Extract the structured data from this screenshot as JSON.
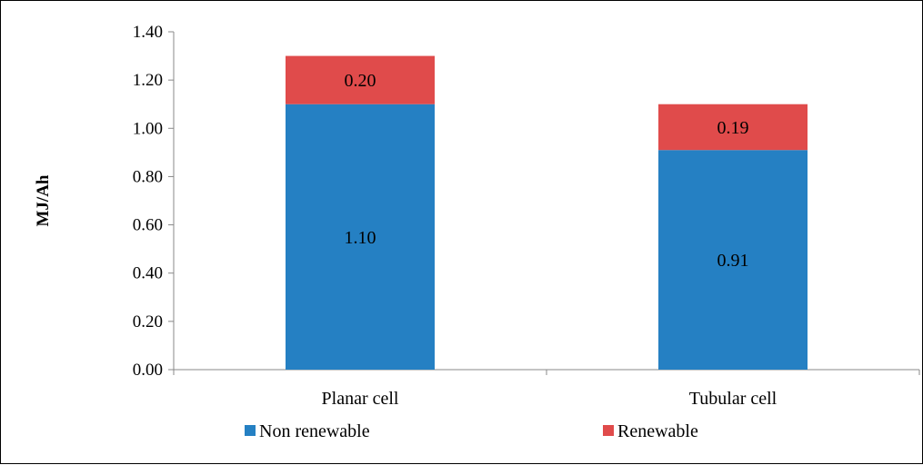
{
  "chart_data": {
    "type": "bar",
    "stacked": true,
    "categories": [
      "Planar cell",
      "Tubular cell"
    ],
    "series": [
      {
        "name": "Non renewable",
        "values": [
          1.1,
          0.91
        ],
        "labels": [
          "1.10",
          "0.91"
        ],
        "color": "#2580C3"
      },
      {
        "name": "Renewable",
        "values": [
          0.2,
          0.19
        ],
        "labels": [
          "0.20",
          "0.19"
        ],
        "color": "#E04B4B"
      }
    ],
    "ylabel": "MJ/Ah",
    "xlabel": "",
    "ylim": [
      0,
      1.4
    ],
    "yticks": [
      "0.00",
      "0.20",
      "0.40",
      "0.60",
      "0.80",
      "1.00",
      "1.20",
      "1.40"
    ],
    "grid": false,
    "legend": "bottom"
  }
}
